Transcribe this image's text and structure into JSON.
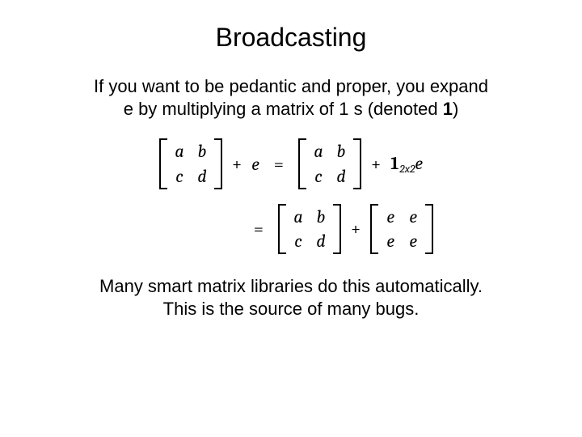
{
  "colors": {
    "background": "#ffffff",
    "text": "#000000"
  },
  "fonts": {
    "body": "Arial",
    "math": "Cambria",
    "title_size_pt": 32,
    "body_size_pt": 22,
    "math_size_pt": 22,
    "sub_size_pt": 14
  },
  "title": "Broadcasting",
  "intro_line1": "If you want to be pedantic and proper, you expand",
  "intro_line2_before": "e by multiplying a matrix of 1 s (denoted ",
  "intro_bold": "1",
  "intro_line2_after": ")",
  "math": {
    "lhs": {
      "matrix": [
        [
          "a",
          "b"
        ],
        [
          "c",
          "d"
        ]
      ],
      "plus": "+",
      "scalar": "e"
    },
    "eq": "=",
    "rhs1": {
      "matrix": [
        [
          "a",
          "b"
        ],
        [
          "c",
          "d"
        ]
      ],
      "plus": "+",
      "ones_symbol": "1",
      "ones_sub": "2x2",
      "scalar": "e"
    },
    "rhs2": {
      "matrix_left": [
        [
          "a",
          "b"
        ],
        [
          "c",
          "d"
        ]
      ],
      "plus": "+",
      "matrix_right": [
        [
          "e",
          "e"
        ],
        [
          "e",
          "e"
        ]
      ]
    }
  },
  "footer_line1": "Many smart matrix libraries do this automatically.",
  "footer_line2": "This is the source of many bugs."
}
